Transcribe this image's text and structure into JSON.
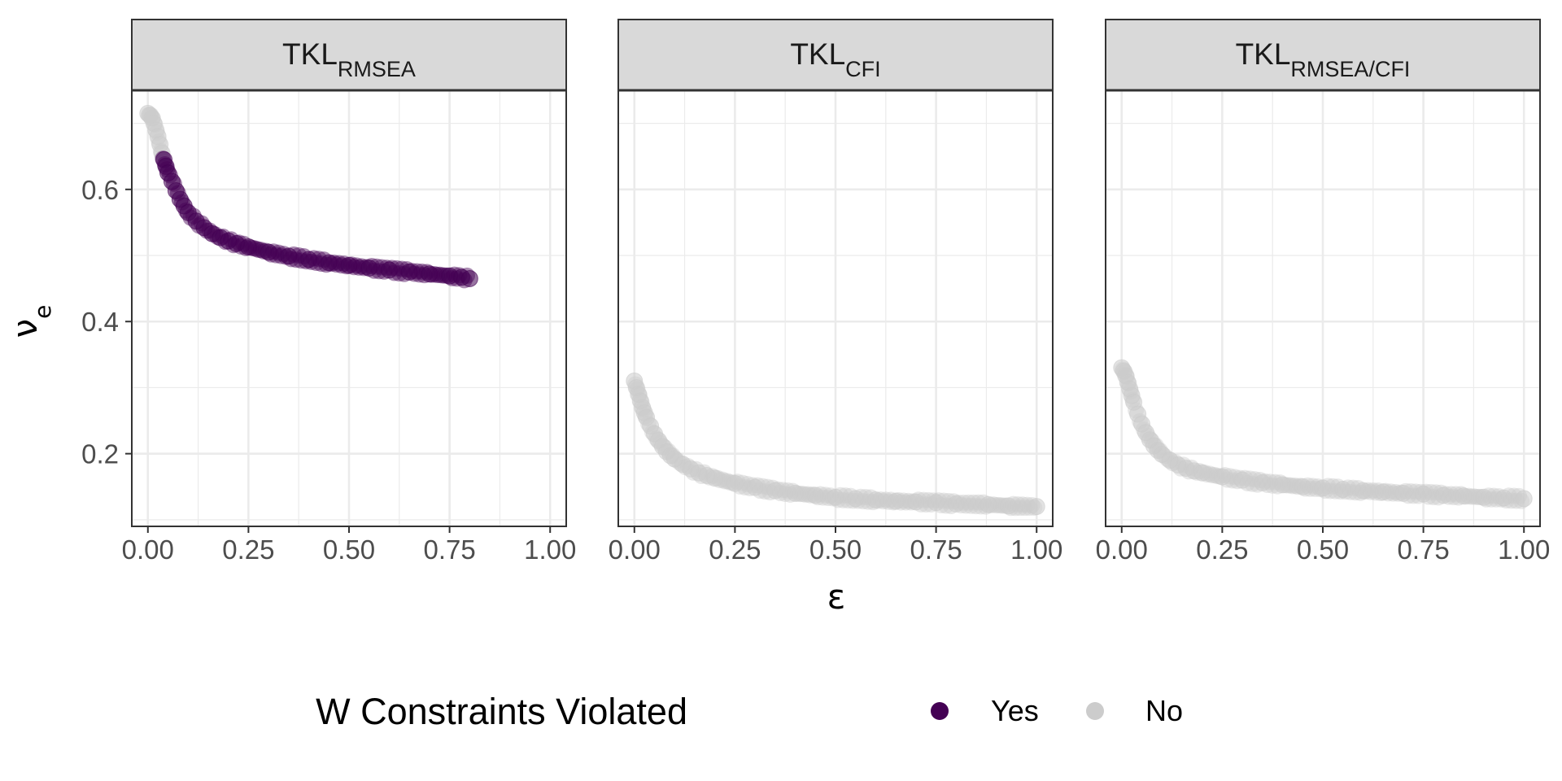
{
  "chart_data": {
    "type": "scatter",
    "facets": [
      {
        "label_main": "TKL",
        "label_sub": "RMSEA",
        "points": [
          {
            "x": 0.0,
            "y": 0.715,
            "v": "No"
          },
          {
            "x": 0.005,
            "y": 0.712,
            "v": "No"
          },
          {
            "x": 0.01,
            "y": 0.708,
            "v": "No"
          },
          {
            "x": 0.015,
            "y": 0.7,
            "v": "No"
          },
          {
            "x": 0.02,
            "y": 0.69,
            "v": "No"
          },
          {
            "x": 0.025,
            "y": 0.68,
            "v": "No"
          },
          {
            "x": 0.03,
            "y": 0.668,
            "v": "No"
          },
          {
            "x": 0.035,
            "y": 0.655,
            "v": "No"
          },
          {
            "x": 0.04,
            "y": 0.645,
            "v": "Yes"
          },
          {
            "x": 0.045,
            "y": 0.635,
            "v": "Yes"
          },
          {
            "x": 0.05,
            "y": 0.625,
            "v": "Yes"
          },
          {
            "x": 0.06,
            "y": 0.612,
            "v": "Yes"
          },
          {
            "x": 0.07,
            "y": 0.598,
            "v": "Yes"
          },
          {
            "x": 0.08,
            "y": 0.585,
            "v": "Yes"
          },
          {
            "x": 0.09,
            "y": 0.575,
            "v": "Yes"
          },
          {
            "x": 0.1,
            "y": 0.565,
            "v": "Yes"
          },
          {
            "x": 0.12,
            "y": 0.552,
            "v": "Yes"
          },
          {
            "x": 0.14,
            "y": 0.542,
            "v": "Yes"
          },
          {
            "x": 0.16,
            "y": 0.533,
            "v": "Yes"
          },
          {
            "x": 0.18,
            "y": 0.527,
            "v": "Yes"
          },
          {
            "x": 0.2,
            "y": 0.522,
            "v": "Yes"
          },
          {
            "x": 0.22,
            "y": 0.518,
            "v": "Yes"
          },
          {
            "x": 0.25,
            "y": 0.513,
            "v": "Yes"
          },
          {
            "x": 0.3,
            "y": 0.505,
            "v": "Yes"
          },
          {
            "x": 0.35,
            "y": 0.499,
            "v": "Yes"
          },
          {
            "x": 0.4,
            "y": 0.494,
            "v": "Yes"
          },
          {
            "x": 0.45,
            "y": 0.489,
            "v": "Yes"
          },
          {
            "x": 0.5,
            "y": 0.485,
            "v": "Yes"
          },
          {
            "x": 0.55,
            "y": 0.481,
            "v": "Yes"
          },
          {
            "x": 0.6,
            "y": 0.478,
            "v": "Yes"
          },
          {
            "x": 0.65,
            "y": 0.475,
            "v": "Yes"
          },
          {
            "x": 0.7,
            "y": 0.472,
            "v": "Yes"
          },
          {
            "x": 0.75,
            "y": 0.469,
            "v": "Yes"
          },
          {
            "x": 0.78,
            "y": 0.467,
            "v": "Yes"
          },
          {
            "x": 0.8,
            "y": 0.465,
            "v": "Yes"
          }
        ]
      },
      {
        "label_main": "TKL",
        "label_sub": "CFI",
        "points": [
          {
            "x": 0.0,
            "y": 0.31,
            "v": "No"
          },
          {
            "x": 0.005,
            "y": 0.3,
            "v": "No"
          },
          {
            "x": 0.01,
            "y": 0.29,
            "v": "No"
          },
          {
            "x": 0.015,
            "y": 0.28,
            "v": "No"
          },
          {
            "x": 0.02,
            "y": 0.27,
            "v": "No"
          },
          {
            "x": 0.025,
            "y": 0.262,
            "v": "No"
          },
          {
            "x": 0.03,
            "y": 0.255,
            "v": "No"
          },
          {
            "x": 0.04,
            "y": 0.242,
            "v": "No"
          },
          {
            "x": 0.05,
            "y": 0.23,
            "v": "No"
          },
          {
            "x": 0.06,
            "y": 0.22,
            "v": "No"
          },
          {
            "x": 0.07,
            "y": 0.211,
            "v": "No"
          },
          {
            "x": 0.08,
            "y": 0.203,
            "v": "No"
          },
          {
            "x": 0.09,
            "y": 0.197,
            "v": "No"
          },
          {
            "x": 0.1,
            "y": 0.192,
            "v": "No"
          },
          {
            "x": 0.12,
            "y": 0.184,
            "v": "No"
          },
          {
            "x": 0.14,
            "y": 0.177,
            "v": "No"
          },
          {
            "x": 0.16,
            "y": 0.171,
            "v": "No"
          },
          {
            "x": 0.18,
            "y": 0.167,
            "v": "No"
          },
          {
            "x": 0.2,
            "y": 0.163,
            "v": "No"
          },
          {
            "x": 0.25,
            "y": 0.155,
            "v": "No"
          },
          {
            "x": 0.3,
            "y": 0.149,
            "v": "No"
          },
          {
            "x": 0.35,
            "y": 0.144,
            "v": "No"
          },
          {
            "x": 0.4,
            "y": 0.14,
            "v": "No"
          },
          {
            "x": 0.45,
            "y": 0.137,
            "v": "No"
          },
          {
            "x": 0.5,
            "y": 0.134,
            "v": "No"
          },
          {
            "x": 0.55,
            "y": 0.132,
            "v": "No"
          },
          {
            "x": 0.6,
            "y": 0.13,
            "v": "No"
          },
          {
            "x": 0.65,
            "y": 0.128,
            "v": "No"
          },
          {
            "x": 0.7,
            "y": 0.127,
            "v": "No"
          },
          {
            "x": 0.75,
            "y": 0.126,
            "v": "No"
          },
          {
            "x": 0.8,
            "y": 0.124,
            "v": "No"
          },
          {
            "x": 0.88,
            "y": 0.123,
            "v": "No"
          },
          {
            "x": 0.93,
            "y": 0.121,
            "v": "No"
          },
          {
            "x": 1.0,
            "y": 0.12,
            "v": "No"
          }
        ]
      },
      {
        "label_main": "TKL",
        "label_sub": "RMSEA/CFI",
        "points": [
          {
            "x": 0.0,
            "y": 0.33,
            "v": "No"
          },
          {
            "x": 0.005,
            "y": 0.325,
            "v": "No"
          },
          {
            "x": 0.01,
            "y": 0.318,
            "v": "No"
          },
          {
            "x": 0.015,
            "y": 0.308,
            "v": "No"
          },
          {
            "x": 0.02,
            "y": 0.298,
            "v": "No"
          },
          {
            "x": 0.025,
            "y": 0.288,
            "v": "No"
          },
          {
            "x": 0.03,
            "y": 0.278,
            "v": "No"
          },
          {
            "x": 0.04,
            "y": 0.26,
            "v": "No"
          },
          {
            "x": 0.05,
            "y": 0.245,
            "v": "No"
          },
          {
            "x": 0.06,
            "y": 0.232,
            "v": "No"
          },
          {
            "x": 0.07,
            "y": 0.221,
            "v": "No"
          },
          {
            "x": 0.08,
            "y": 0.212,
            "v": "No"
          },
          {
            "x": 0.09,
            "y": 0.205,
            "v": "No"
          },
          {
            "x": 0.1,
            "y": 0.199,
            "v": "No"
          },
          {
            "x": 0.12,
            "y": 0.19,
            "v": "No"
          },
          {
            "x": 0.14,
            "y": 0.183,
            "v": "No"
          },
          {
            "x": 0.16,
            "y": 0.178,
            "v": "No"
          },
          {
            "x": 0.18,
            "y": 0.174,
            "v": "No"
          },
          {
            "x": 0.2,
            "y": 0.171,
            "v": "No"
          },
          {
            "x": 0.25,
            "y": 0.165,
            "v": "No"
          },
          {
            "x": 0.3,
            "y": 0.16,
            "v": "No"
          },
          {
            "x": 0.35,
            "y": 0.156,
            "v": "No"
          },
          {
            "x": 0.4,
            "y": 0.153,
            "v": "No"
          },
          {
            "x": 0.45,
            "y": 0.15,
            "v": "No"
          },
          {
            "x": 0.5,
            "y": 0.148,
            "v": "No"
          },
          {
            "x": 0.55,
            "y": 0.146,
            "v": "No"
          },
          {
            "x": 0.6,
            "y": 0.144,
            "v": "No"
          },
          {
            "x": 0.65,
            "y": 0.142,
            "v": "No"
          },
          {
            "x": 0.7,
            "y": 0.14,
            "v": "No"
          },
          {
            "x": 0.75,
            "y": 0.139,
            "v": "No"
          },
          {
            "x": 0.8,
            "y": 0.137,
            "v": "No"
          },
          {
            "x": 0.85,
            "y": 0.136,
            "v": "No"
          },
          {
            "x": 0.9,
            "y": 0.134,
            "v": "No"
          },
          {
            "x": 0.95,
            "y": 0.133,
            "v": "No"
          },
          {
            "x": 1.0,
            "y": 0.132,
            "v": "No"
          }
        ]
      }
    ],
    "xlabel": "ε",
    "ylabel_main": "ν",
    "ylabel_sub": "e",
    "xlim": [
      -0.04,
      1.04
    ],
    "ylim": [
      0.09,
      0.75
    ],
    "x_ticks": [
      0,
      0.25,
      0.5,
      0.75,
      1
    ],
    "x_tick_labels": [
      "0.00",
      "0.25",
      "0.50",
      "0.75",
      "1.00"
    ],
    "y_ticks": [
      0.2,
      0.4,
      0.6
    ],
    "y_tick_labels": [
      "0.2",
      "0.4",
      "0.6"
    ],
    "legend": {
      "title": "W Constraints Violated",
      "position": "bottom",
      "items": [
        {
          "key": "Yes",
          "label": "Yes",
          "color": "#440154"
        },
        {
          "key": "No",
          "label": "No",
          "color": "#cccccc"
        }
      ]
    },
    "grid": true
  }
}
